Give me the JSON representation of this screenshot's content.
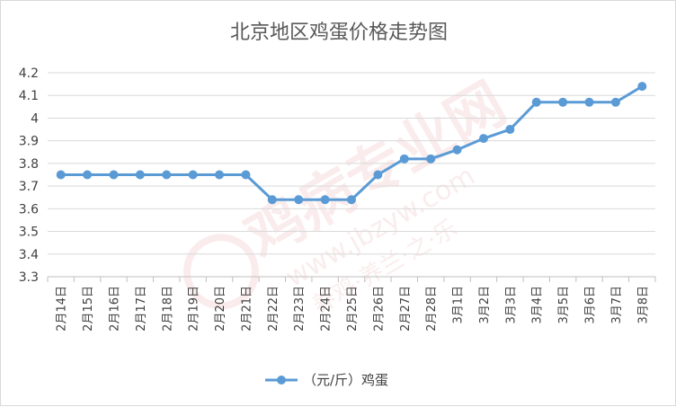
{
  "chart_data": {
    "type": "line",
    "title": "北京地区鸡蛋价格走势图",
    "xlabel": "",
    "ylabel": "",
    "ylim": [
      3.3,
      4.2
    ],
    "yticks": [
      3.3,
      3.4,
      3.5,
      3.6,
      3.7,
      3.8,
      3.9,
      4,
      4.1,
      4.2
    ],
    "ytick_labels": [
      "3.3",
      "3.4",
      "3.5",
      "3.6",
      "3.7",
      "3.8",
      "3.9",
      "4",
      "4.1",
      "4.2"
    ],
    "grid": true,
    "legend_position": "bottom",
    "categories": [
      "2月14日",
      "2月15日",
      "2月16日",
      "2月17日",
      "2月18日",
      "2月19日",
      "2月20日",
      "2月21日",
      "2月22日",
      "2月23日",
      "2月24日",
      "2月25日",
      "2月26日",
      "2月27日",
      "2月28日",
      "3月1日",
      "3月2日",
      "3月3日",
      "3月4日",
      "3月5日",
      "3月6日",
      "3月7日",
      "3月8日"
    ],
    "series": [
      {
        "name": "（元/斤）鸡蛋",
        "color": "#5b9bd5",
        "values": [
          3.75,
          3.75,
          3.75,
          3.75,
          3.75,
          3.75,
          3.75,
          3.75,
          3.64,
          3.64,
          3.64,
          3.64,
          3.75,
          3.82,
          3.82,
          3.86,
          3.91,
          3.95,
          4.07,
          4.07,
          4.07,
          4.07,
          4.14
        ]
      }
    ]
  },
  "watermark": {
    "text": "鸡病专业网",
    "url": "www.jbzyw.com",
    "slogan": "养鸡·养兰·之·乐"
  }
}
